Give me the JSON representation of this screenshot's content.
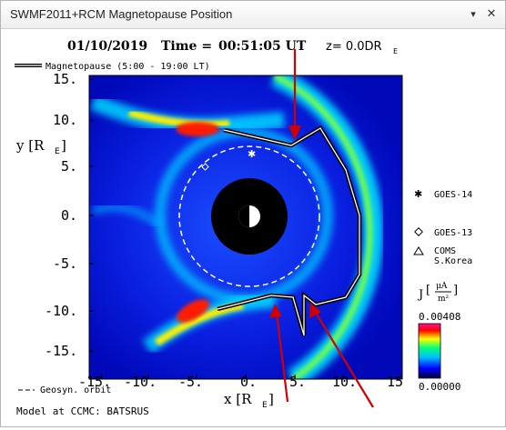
{
  "window": {
    "title": "SWMF2011+RCM Magnetopause Position",
    "minimize_glyph": "▾",
    "close_glyph": "✕"
  },
  "plot": {
    "header_date": "01/10/2019",
    "header_time_label": "Time =",
    "header_time": "00:51:05 UT",
    "header_z": "z= 0.0DR",
    "header_z_sub": "E",
    "legend_magnetopause": "Magnetopause (5:00 - 19:00 LT)",
    "ylabel": "y [R",
    "ylabel_sub": "E",
    "ylabel_close": "]",
    "xlabel": "x [R",
    "xlabel_sub": "E",
    "xlabel_close": "]",
    "yticks": [
      "15.",
      "10.",
      "5.",
      "0.",
      "-5.",
      "-10.",
      "-15."
    ],
    "xticks": [
      "-15.",
      "-10.",
      "-5.",
      "0.",
      "5.",
      "10.",
      "15"
    ],
    "geosyn_legend": "Geosyn. orbit",
    "model_credit": "Model at CCMC: BATSRUS"
  },
  "satellites": [
    {
      "name": "GOES-14",
      "symbol": "asterisk"
    },
    {
      "name": "GOES-13",
      "symbol": "diamond"
    },
    {
      "name": "COMS",
      "name2": "S.Korea",
      "symbol": "triangle"
    }
  ],
  "colorbar": {
    "label": "J",
    "unit_num": "μA",
    "unit_den": "m²",
    "max": "0.00408",
    "min": "0.00000",
    "colors": [
      "#00003a",
      "#0000ff",
      "#00bfff",
      "#00ff7f",
      "#ffff00",
      "#ff0000",
      "#ff1493"
    ]
  },
  "colors": {
    "arrow": "#d00000",
    "magnetopause": "#ffffff"
  }
}
